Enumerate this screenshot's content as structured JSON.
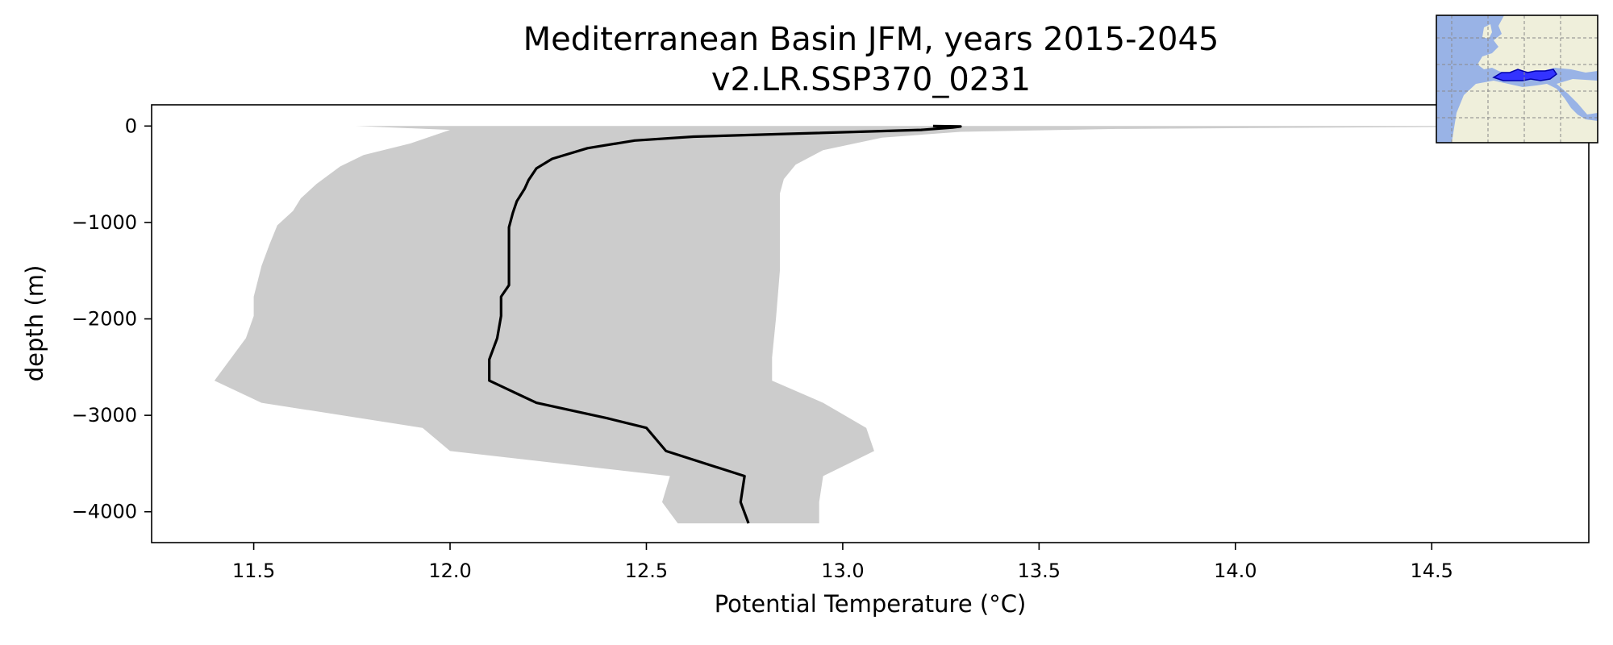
{
  "chart_data": {
    "type": "area",
    "title": "Mediterranean Basin JFM, years 2015-2045",
    "subtitle": "v2.LR.SSP370_0231",
    "xlabel": "Potential Temperature (°C)",
    "ylabel": "depth (m)",
    "xlim": [
      11.24,
      14.9
    ],
    "ylim": [
      -4320,
      220
    ],
    "grid": false,
    "x_ticks": [
      11.5,
      12.0,
      12.5,
      13.0,
      13.5,
      14.0,
      14.5
    ],
    "x_tick_labels": [
      "11.5",
      "12.0",
      "12.5",
      "13.0",
      "13.5",
      "14.0",
      "14.5"
    ],
    "y_ticks": [
      0,
      -1000,
      -2000,
      -3000,
      -4000
    ],
    "y_tick_labels": [
      "0",
      "−1000",
      "−2000",
      "−3000",
      "−4000"
    ],
    "series": [
      {
        "type": "line",
        "color": "#000000",
        "points": [
          [
            13.23,
            0
          ],
          [
            13.3,
            -5
          ],
          [
            13.28,
            -15
          ],
          [
            13.2,
            -40
          ],
          [
            12.87,
            -80
          ],
          [
            12.62,
            -110
          ],
          [
            12.47,
            -150
          ],
          [
            12.35,
            -230
          ],
          [
            12.26,
            -340
          ],
          [
            12.22,
            -440
          ],
          [
            12.2,
            -560
          ],
          [
            12.19,
            -650
          ],
          [
            12.17,
            -780
          ],
          [
            12.16,
            -900
          ],
          [
            12.15,
            -1050
          ],
          [
            12.15,
            -1230
          ],
          [
            12.15,
            -1450
          ],
          [
            12.15,
            -1650
          ],
          [
            12.13,
            -1770
          ],
          [
            12.13,
            -1970
          ],
          [
            12.12,
            -2200
          ],
          [
            12.1,
            -2420
          ],
          [
            12.1,
            -2640
          ],
          [
            12.22,
            -2870
          ],
          [
            12.4,
            -3030
          ],
          [
            12.5,
            -3130
          ],
          [
            12.55,
            -3370
          ],
          [
            12.75,
            -3630
          ],
          [
            12.74,
            -3900
          ],
          [
            12.76,
            -4120
          ]
        ]
      }
    ],
    "band": {
      "color": "#cccccc",
      "points": [
        [
          14.9,
          0
        ],
        [
          13.7,
          -30
        ],
        [
          13.3,
          -60
        ],
        [
          13.1,
          -120
        ],
        [
          12.95,
          -250
        ],
        [
          12.88,
          -400
        ],
        [
          12.85,
          -550
        ],
        [
          12.84,
          -700
        ],
        [
          12.84,
          -1000
        ],
        [
          12.84,
          -1500
        ],
        [
          12.83,
          -2000
        ],
        [
          12.82,
          -2400
        ],
        [
          12.82,
          -2640
        ],
        [
          12.95,
          -2870
        ],
        [
          13.06,
          -3130
        ],
        [
          13.08,
          -3370
        ],
        [
          12.95,
          -3630
        ],
        [
          12.94,
          -3900
        ],
        [
          12.94,
          -4120
        ],
        [
          12.58,
          -4120
        ],
        [
          12.54,
          -3900
        ],
        [
          12.56,
          -3630
        ],
        [
          12.0,
          -3370
        ],
        [
          11.93,
          -3130
        ],
        [
          11.52,
          -2870
        ],
        [
          11.4,
          -2640
        ],
        [
          11.48,
          -2200
        ],
        [
          11.5,
          -1970
        ],
        [
          11.5,
          -1770
        ],
        [
          11.52,
          -1450
        ],
        [
          11.54,
          -1230
        ],
        [
          11.56,
          -1030
        ],
        [
          11.6,
          -880
        ],
        [
          11.62,
          -750
        ],
        [
          11.66,
          -600
        ],
        [
          11.72,
          -420
        ],
        [
          11.78,
          -300
        ],
        [
          11.9,
          -180
        ],
        [
          12.0,
          -40
        ],
        [
          11.76,
          0
        ]
      ]
    },
    "inset_map": {
      "title": "",
      "ocean_color": "#99b3e6",
      "land_color": "#efefdb",
      "region_color": "#3333ff",
      "gridlines": "dashed"
    }
  }
}
